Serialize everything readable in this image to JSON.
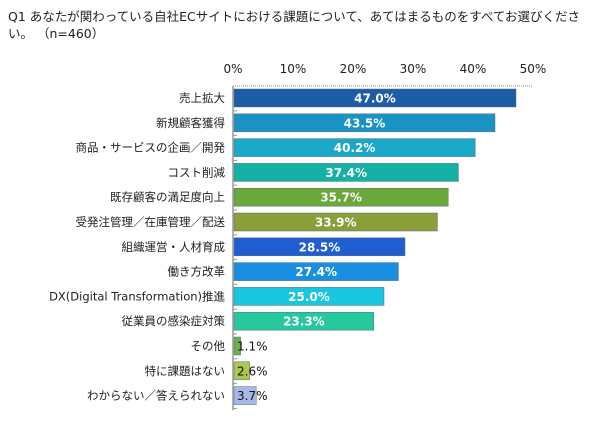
{
  "chart_data": {
    "type": "bar",
    "orientation": "horizontal",
    "title": "Q1 あなたが関わっている自社ECサイトにおける課題について、あてはまるものをすべてお選びください。 （n=460）",
    "categories": [
      "売上拡大",
      "新規顧客獲得",
      "商品・サービスの企画／開発",
      "コスト削減",
      "既存顧客の満足度向上",
      "受発注管理／在庫管理／配送",
      "組織運営・人材育成",
      "働き方改革",
      "DX(Digital Transformation)推進",
      "従業員の感染症対策",
      "その他",
      "特に課題はない",
      "わからない／答えられない"
    ],
    "values": [
      47.0,
      43.5,
      40.2,
      37.4,
      35.7,
      33.9,
      28.5,
      27.4,
      25.0,
      23.3,
      1.1,
      2.6,
      3.7
    ],
    "data_labels": [
      "47.0%",
      "43.5%",
      "40.2%",
      "37.4%",
      "35.7%",
      "33.9%",
      "28.5%",
      "27.4%",
      "25.0%",
      "23.3%",
      "1.1%",
      "2.6%",
      "3.7%"
    ],
    "colors": [
      "#1f5ca6",
      "#1a92c4",
      "#1aa8c8",
      "#14b0a4",
      "#6aa83a",
      "#8a9e3a",
      "#1e5ed0",
      "#1a8ee0",
      "#18c6e0",
      "#26c8a0",
      "#6ab04c",
      "#a8c850",
      "#a8b8e8"
    ],
    "xlim": [
      0,
      50
    ],
    "ticks": [
      "0%",
      "10%",
      "20%",
      "30%",
      "40%",
      "50%"
    ],
    "tick_position": "top",
    "grid": false,
    "legend": "none"
  }
}
